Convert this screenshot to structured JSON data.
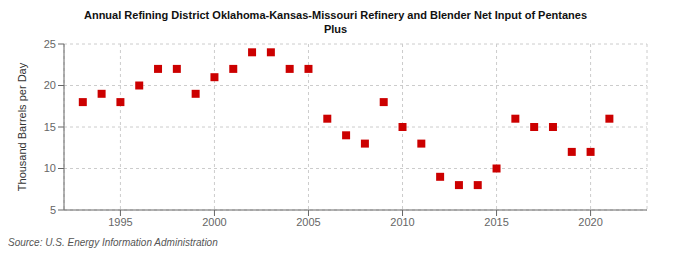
{
  "chart_data": {
    "type": "scatter",
    "title": "Annual Refining District Oklahoma-Kansas-Missouri Refinery and Blender Net Input of Pentanes\nPlus",
    "ylabel": "Thousand Barrels per Day",
    "annotations": [
      "Source: U.S. Energy Information Administration"
    ],
    "x": [
      1993,
      1994,
      1995,
      1996,
      1997,
      1998,
      1999,
      2000,
      2001,
      2002,
      2003,
      2004,
      2005,
      2006,
      2007,
      2008,
      2009,
      2010,
      2011,
      2012,
      2013,
      2014,
      2015,
      2016,
      2017,
      2018,
      2019,
      2020,
      2021
    ],
    "values": [
      18,
      19,
      18,
      20,
      22,
      22,
      19,
      21,
      22,
      24,
      24,
      22,
      22,
      16,
      14,
      13,
      18,
      15,
      13,
      9,
      8,
      8,
      10,
      16,
      15,
      15,
      12,
      12,
      16
    ],
    "color": "#cc0000",
    "marker": "square",
    "xlim": [
      1992,
      2023
    ],
    "ylim": [
      5,
      25
    ],
    "xticks": [
      1995,
      2000,
      2005,
      2010,
      2015,
      2020
    ],
    "yticks": [
      5,
      10,
      15,
      20,
      25
    ],
    "grid": true
  }
}
